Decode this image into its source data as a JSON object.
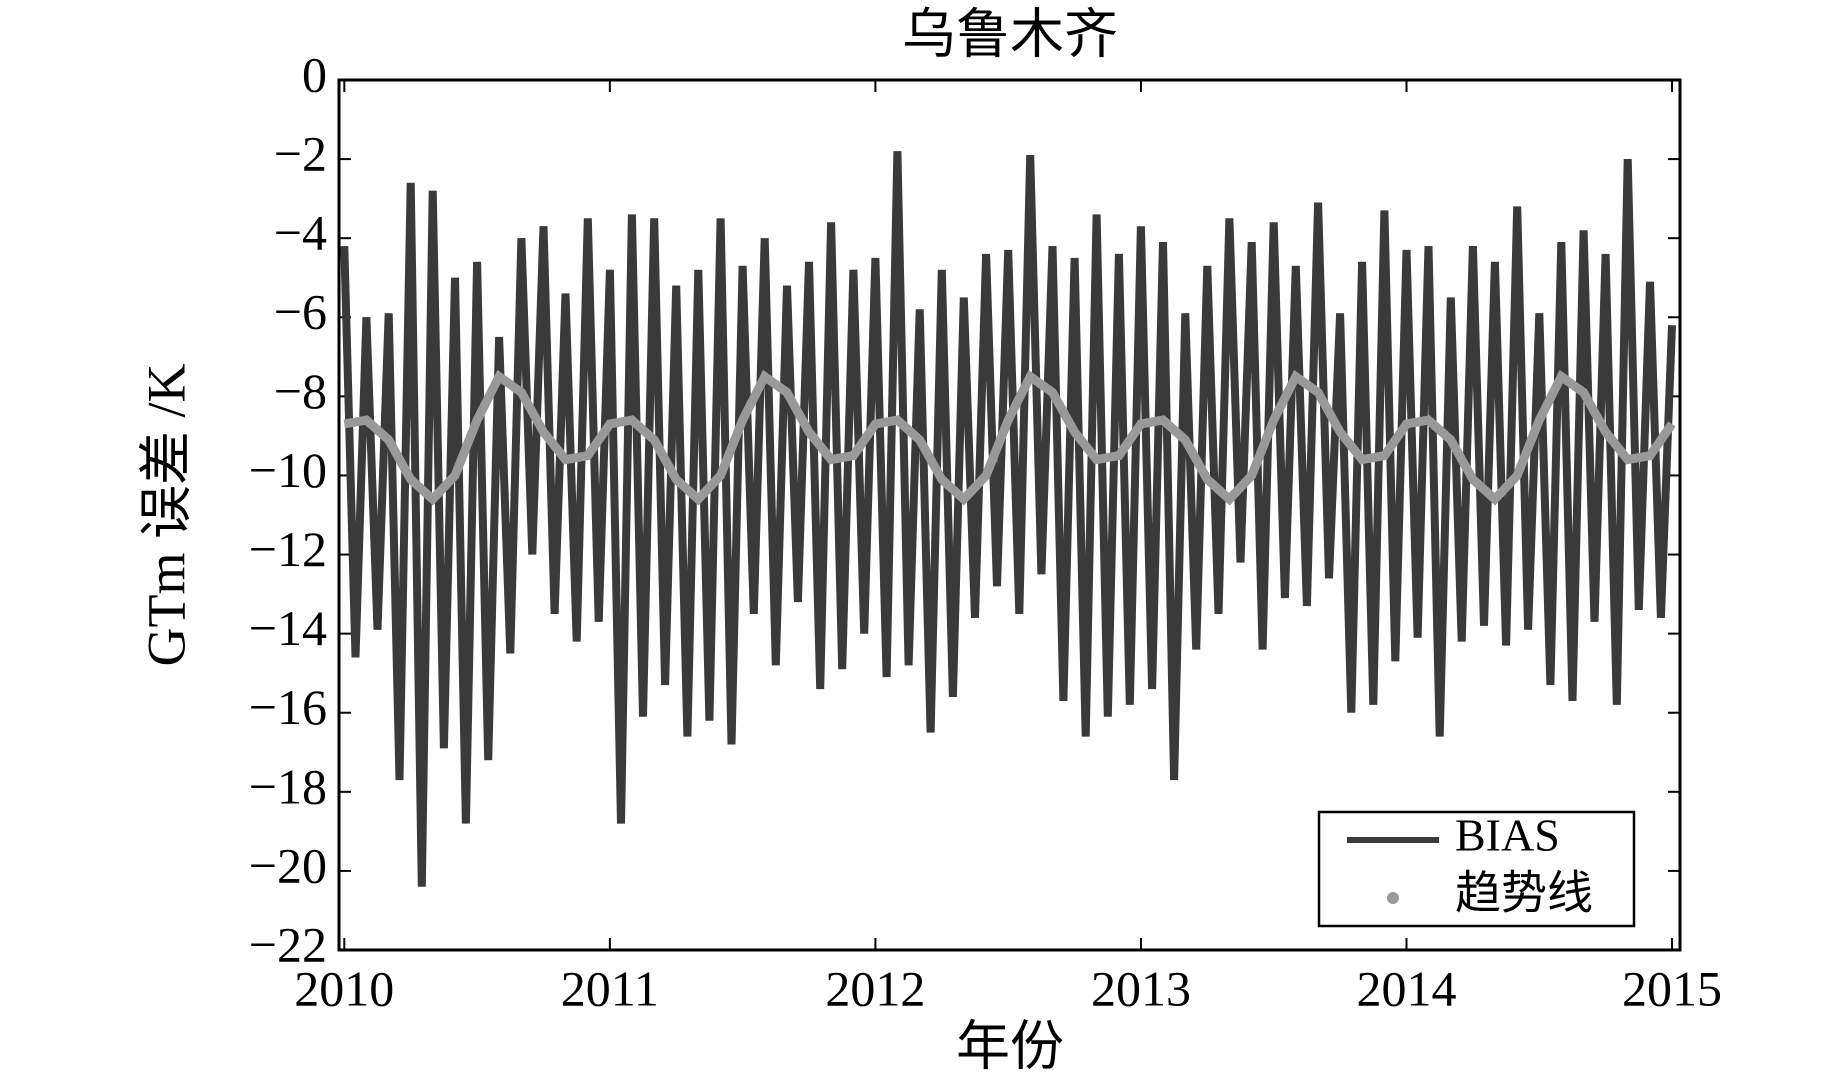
{
  "chart_data": {
    "type": "line",
    "title": "乌鲁木齐",
    "x_label": "年份",
    "y_label": "GTm 误差 /K",
    "xlim": [
      2009.98,
      2015.03
    ],
    "xticks": [
      2010,
      2011,
      2012,
      2013,
      2014,
      2015
    ],
    "ylim": [
      -22,
      0
    ],
    "yticks": [
      0,
      {
        "value": -2,
        "label": "−2"
      },
      {
        "value": -4,
        "label": "−4"
      },
      {
        "value": -6,
        "label": "−6"
      },
      {
        "value": -8,
        "label": "−8"
      },
      {
        "value": -10,
        "label": "−10"
      },
      {
        "value": -12,
        "label": "−12"
      },
      {
        "value": -14,
        "label": "−14"
      },
      {
        "value": -16,
        "label": "−16"
      },
      {
        "value": -18,
        "label": "−18"
      },
      {
        "value": -20,
        "label": "−20"
      },
      {
        "value": -22,
        "label": "−22"
      }
    ],
    "legend": "lower right",
    "series": [
      {
        "name": "BIAS",
        "color": "#3a3a3a",
        "x": [
          2010,
          2010.042,
          2010.083,
          2010.125,
          2010.167,
          2010.208,
          2010.25,
          2010.292,
          2010.333,
          2010.375,
          2010.417,
          2010.458,
          2010.5,
          2010.542,
          2010.583,
          2010.625,
          2010.667,
          2010.708,
          2010.75,
          2010.792,
          2010.833,
          2010.875,
          2010.917,
          2010.958,
          2011,
          2011.042,
          2011.083,
          2011.125,
          2011.167,
          2011.208,
          2011.25,
          2011.292,
          2011.333,
          2011.375,
          2011.417,
          2011.458,
          2011.5,
          2011.542,
          2011.583,
          2011.625,
          2011.667,
          2011.708,
          2011.75,
          2011.792,
          2011.833,
          2011.875,
          2011.917,
          2011.958,
          2012,
          2012.042,
          2012.083,
          2012.125,
          2012.167,
          2012.208,
          2012.25,
          2012.292,
          2012.333,
          2012.375,
          2012.417,
          2012.458,
          2012.5,
          2012.542,
          2012.583,
          2012.625,
          2012.667,
          2012.708,
          2012.75,
          2012.792,
          2012.833,
          2012.875,
          2012.917,
          2012.958,
          2013,
          2013.042,
          2013.083,
          2013.125,
          2013.167,
          2013.208,
          2013.25,
          2013.292,
          2013.333,
          2013.375,
          2013.417,
          2013.458,
          2013.5,
          2013.542,
          2013.583,
          2013.625,
          2013.667,
          2013.708,
          2013.75,
          2013.792,
          2013.833,
          2013.875,
          2013.917,
          2013.958,
          2014,
          2014.042,
          2014.083,
          2014.125,
          2014.167,
          2014.208,
          2014.25,
          2014.292,
          2014.333,
          2014.375,
          2014.417,
          2014.458,
          2014.5,
          2014.542,
          2014.583,
          2014.625,
          2014.667,
          2014.708,
          2014.75,
          2014.792,
          2014.833,
          2014.875,
          2014.917,
          2014.958,
          2015
        ],
        "values": [
          -4.2,
          -14.6,
          -6,
          -13.9,
          -5.9,
          -17.7,
          -2.6,
          -20.4,
          -2.8,
          -16.9,
          -5,
          -18.8,
          -4.6,
          -17.2,
          -6.5,
          -14.5,
          -4,
          -12,
          -3.7,
          -13.5,
          -5.4,
          -14.2,
          -3.5,
          -13.7,
          -4.8,
          -18.8,
          -3.4,
          -16.1,
          -3.5,
          -15.3,
          -5.2,
          -16.6,
          -4.8,
          -16.2,
          -3.5,
          -16.8,
          -4.7,
          -13.5,
          -4,
          -14.8,
          -5.2,
          -13.2,
          -4.6,
          -15.4,
          -3.6,
          -14.9,
          -4.8,
          -14,
          -4.5,
          -15.1,
          -1.8,
          -14.8,
          -5.8,
          -16.5,
          -4.8,
          -15.6,
          -5.5,
          -13.6,
          -4.4,
          -12.8,
          -4.3,
          -13.5,
          -1.9,
          -12.5,
          -4.2,
          -15.7,
          -4.5,
          -16.6,
          -3.4,
          -16.1,
          -4.4,
          -15.8,
          -3.7,
          -15.4,
          -4.1,
          -17.7,
          -5.9,
          -14.4,
          -4.7,
          -13.5,
          -3.5,
          -12.2,
          -4.1,
          -14.4,
          -3.6,
          -13.1,
          -4.7,
          -13.3,
          -3.1,
          -12.6,
          -5.9,
          -16,
          -4.6,
          -15.8,
          -3.3,
          -14.7,
          -4.3,
          -14.1,
          -4.2,
          -16.6,
          -5.5,
          -14.2,
          -4.2,
          -13.8,
          -4.6,
          -14.3,
          -3.2,
          -13.9,
          -5.9,
          -15.3,
          -4.1,
          -15.7,
          -3.8,
          -13.7,
          -4.4,
          -15.8,
          -2,
          -13.4,
          -5.1,
          -13.6,
          -6.2
        ]
      },
      {
        "name": "趋势线",
        "color": "#999999",
        "x": [
          2010,
          2010.083,
          2010.167,
          2010.25,
          2010.333,
          2010.417,
          2010.5,
          2010.583,
          2010.667,
          2010.75,
          2010.833,
          2010.917,
          2011,
          2011.083,
          2011.167,
          2011.25,
          2011.333,
          2011.417,
          2011.5,
          2011.583,
          2011.667,
          2011.75,
          2011.833,
          2011.917,
          2012,
          2012.083,
          2012.167,
          2012.25,
          2012.333,
          2012.417,
          2012.5,
          2012.583,
          2012.667,
          2012.75,
          2012.833,
          2012.917,
          2013,
          2013.083,
          2013.167,
          2013.25,
          2013.333,
          2013.417,
          2013.5,
          2013.583,
          2013.667,
          2013.75,
          2013.833,
          2013.917,
          2014,
          2014.083,
          2014.167,
          2014.25,
          2014.333,
          2014.417,
          2014.5,
          2014.583,
          2014.667,
          2014.75,
          2014.833,
          2014.917,
          2015
        ],
        "values": [
          -8.7,
          -8.6,
          -9.1,
          -10.1,
          -10.6,
          -10,
          -8.6,
          -7.5,
          -7.9,
          -8.9,
          -9.6,
          -9.5,
          -8.7,
          -8.6,
          -9.1,
          -10.1,
          -10.6,
          -10,
          -8.6,
          -7.5,
          -7.9,
          -8.9,
          -9.6,
          -9.5,
          -8.7,
          -8.6,
          -9.1,
          -10.1,
          -10.6,
          -10,
          -8.6,
          -7.5,
          -7.9,
          -8.9,
          -9.6,
          -9.5,
          -8.7,
          -8.6,
          -9.1,
          -10.1,
          -10.6,
          -10,
          -8.6,
          -7.5,
          -7.9,
          -8.9,
          -9.6,
          -9.5,
          -8.7,
          -8.6,
          -9.1,
          -10.1,
          -10.6,
          -10,
          -8.6,
          -7.5,
          -7.9,
          -8.9,
          -9.6,
          -9.5,
          -8.7
        ]
      }
    ]
  }
}
